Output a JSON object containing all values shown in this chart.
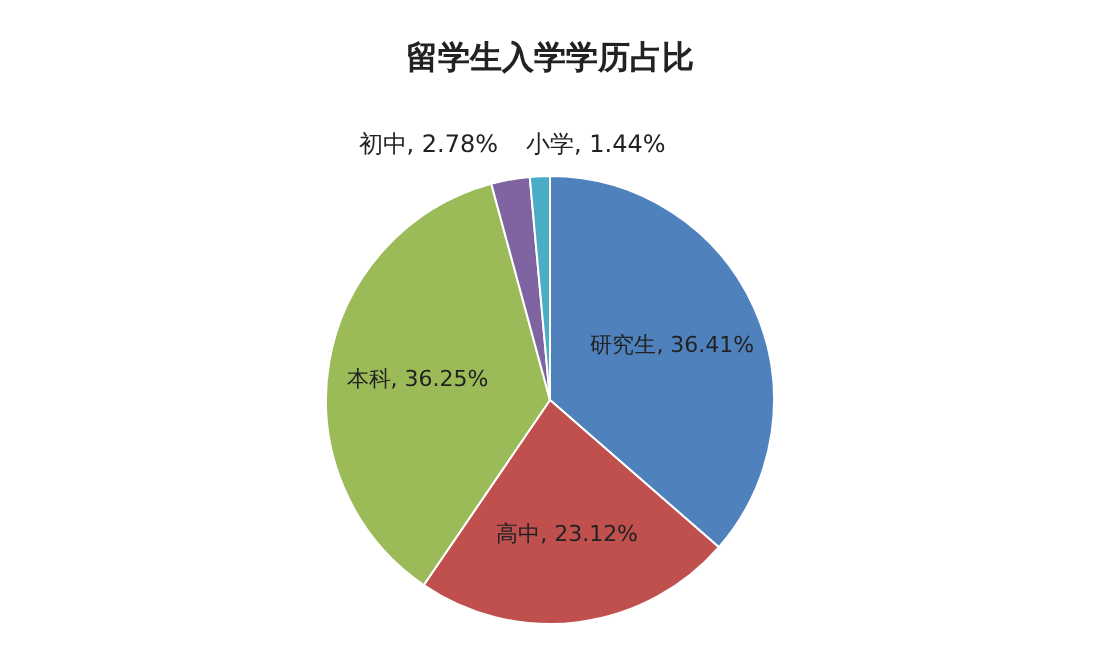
{
  "chart_data": {
    "type": "pie",
    "title": "留学生入学学历占比",
    "categories": [
      "研究生, 36.41%",
      "高中, 23.12%",
      "本科, 36.25%",
      "初中, 2.78%",
      "小学, 1.44%"
    ],
    "values": [
      36.41,
      23.12,
      36.25,
      2.78,
      1.44
    ],
    "colors": [
      "#4f81bd",
      "#c0504d",
      "#9bbb59",
      "#8064a2",
      "#4bacc6"
    ]
  }
}
